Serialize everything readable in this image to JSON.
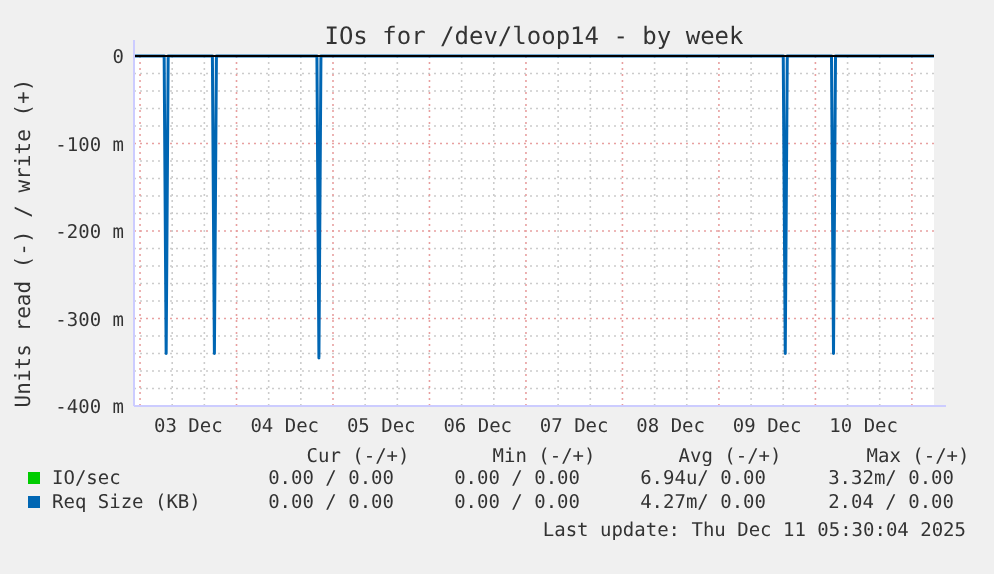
{
  "chart_data": {
    "type": "line",
    "title": "IOs for /dev/loop14 - by week",
    "ylabel": "Units read (-) / write (+)",
    "xlim": [
      "2025-12-02T22:30",
      "2025-12-11T05:30"
    ],
    "xticks": [
      {
        "value": "2025-12-03T12:00",
        "label": "03 Dec"
      },
      {
        "value": "2025-12-04T12:00",
        "label": "04 Dec"
      },
      {
        "value": "2025-12-05T12:00",
        "label": "05 Dec"
      },
      {
        "value": "2025-12-06T12:00",
        "label": "06 Dec"
      },
      {
        "value": "2025-12-07T12:00",
        "label": "07 Dec"
      },
      {
        "value": "2025-12-08T12:00",
        "label": "08 Dec"
      },
      {
        "value": "2025-12-09T12:00",
        "label": "09 Dec"
      },
      {
        "value": "2025-12-10T12:00",
        "label": "10 Dec"
      }
    ],
    "ylim": [
      -400,
      0
    ],
    "yticks": [
      {
        "value": -400,
        "label": "-400 m"
      },
      {
        "value": -300,
        "label": "-300 m"
      },
      {
        "value": -200,
        "label": "-200 m"
      },
      {
        "value": -100,
        "label": "-100 m"
      },
      0
    ],
    "grid": true,
    "legend": "bottom",
    "marker": "none",
    "line_style": "solid",
    "series": [
      {
        "name": "IO/sec",
        "color": "#00cc00"
      },
      {
        "name": "Req Size (KB)",
        "color": "#0066b3",
        "x": [
          "2025-12-02T22:30",
          "2025-12-03T06:00",
          "2025-12-03T06:30",
          "2025-12-03T07:00",
          "2025-12-03T18:00",
          "2025-12-03T18:30",
          "2025-12-03T19:00",
          "2025-12-04T20:00",
          "2025-12-04T20:30",
          "2025-12-04T21:00",
          "2025-12-09T16:00",
          "2025-12-09T16:30",
          "2025-12-09T17:00",
          "2025-12-10T04:00",
          "2025-12-10T04:30",
          "2025-12-10T05:00",
          "2025-12-11T05:30"
        ],
        "values": [
          0,
          0,
          -340,
          0,
          0,
          -340,
          0,
          0,
          -345,
          0,
          0,
          -340,
          0,
          0,
          -340,
          0,
          0
        ]
      }
    ],
    "annotations": [
      "Cur (-/+)",
      "Min (-/+)",
      "Avg (-/+)",
      "Max (-/+)",
      "0.00 / 0.00",
      "0.00 / 0.00",
      "6.94u/ 0.00",
      "3.32m/ 0.00",
      "0.00 / 0.00",
      "0.00 / 0.00",
      "4.27m/ 0.00",
      "2.04 / 0.00",
      "Last update: Thu Dec 11 05:30:04 2025"
    ]
  }
}
